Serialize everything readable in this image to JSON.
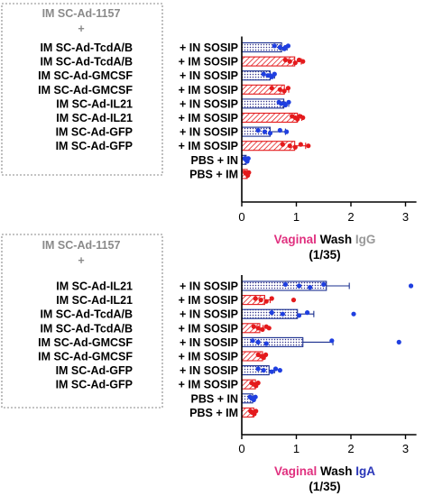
{
  "colors": {
    "in_fill": "url(#dots)",
    "in_stroke": "#1a2f8f",
    "in_dot": "#1f3fe0",
    "im_fill": "url(#hatch)",
    "im_stroke": "#e41a1c",
    "im_dot": "#e41a1c",
    "vaginal": "#e0307f",
    "wash": "#000000",
    "igg": "#999999",
    "iga": "#2a36b8"
  },
  "chart_data": [
    {
      "type": "bar",
      "orientation": "horizontal",
      "group_header": [
        "IM SC-Ad-1157",
        "+"
      ],
      "categories": [
        [
          "IM SC-Ad-TcdA/B",
          "+ IN SOSIP"
        ],
        [
          "IM SC-Ad-TcdA/B",
          "+ IM SOSIP"
        ],
        [
          "IM SC-Ad-GMCSF",
          "+ IN SOSIP"
        ],
        [
          "IM SC-Ad-GMCSF",
          "+ IM SOSIP"
        ],
        [
          "IM SC-Ad-IL21",
          "+ IN SOSIP"
        ],
        [
          "IM SC-Ad-IL21",
          "+ IM SOSIP"
        ],
        [
          "IM SC-Ad-GFP",
          "+ IN SOSIP"
        ],
        [
          "IM SC-Ad-GFP",
          "+ IM SOSIP"
        ],
        [
          "",
          "PBS + IN"
        ],
        [
          "",
          "PBS + IM"
        ]
      ],
      "route": [
        "IN",
        "IM",
        "IN",
        "IM",
        "IN",
        "IM",
        "IN",
        "IM",
        "IN",
        "IM"
      ],
      "values": [
        0.73,
        0.97,
        0.52,
        0.78,
        0.77,
        1.02,
        0.52,
        0.97,
        0.08,
        0.1
      ],
      "errors": [
        0.1,
        0.12,
        0.08,
        0.08,
        0.09,
        0.08,
        0.28,
        0.2,
        0.03,
        0.03
      ],
      "points": [
        [
          0.6,
          0.7,
          0.78,
          0.85,
          0.8
        ],
        [
          0.8,
          0.88,
          0.98,
          1.05,
          1.12
        ],
        [
          0.4,
          0.48,
          0.55,
          0.6,
          0.52
        ],
        [
          0.55,
          0.7,
          0.78,
          0.85
        ],
        [
          0.68,
          0.72,
          0.8,
          0.86,
          0.78
        ],
        [
          0.92,
          0.98,
          1.02,
          1.06,
          1.12
        ],
        [
          0.3,
          0.42,
          0.52,
          0.7,
          0.82
        ],
        [
          0.75,
          0.88,
          0.98,
          1.08,
          1.22
        ],
        [
          0.05,
          0.08,
          0.1,
          0.12,
          0.08
        ],
        [
          0.06,
          0.09,
          0.11,
          0.13,
          0.1
        ]
      ],
      "xlim": [
        0,
        3.2
      ],
      "xticks": [
        0,
        1,
        2,
        3
      ],
      "title_parts": [
        "Vaginal",
        "Wash",
        "IgG"
      ],
      "subtitle": "(1/35)"
    },
    {
      "type": "bar",
      "orientation": "horizontal",
      "group_header": [
        "IM SC-Ad-1157",
        "+"
      ],
      "categories": [
        [
          "IM SC-Ad-IL21",
          "+ IN SOSIP"
        ],
        [
          "IM SC-Ad-IL21",
          "+ IM SOSIP"
        ],
        [
          "IM SC-Ad-TcdA/B",
          "+ IN SOSIP"
        ],
        [
          "IM SC-Ad-TcdA/B",
          "+ IM SOSIP"
        ],
        [
          "IM SC-Ad-GMCSF",
          "+ IN SOSIP"
        ],
        [
          "IM SC-Ad-GMCSF",
          "+ IM SOSIP"
        ],
        [
          "IM SC-Ad-GFP",
          "+ IN SOSIP"
        ],
        [
          "IM SC-Ad-GFP",
          "+ IM SOSIP"
        ],
        [
          "",
          "PBS + IN"
        ],
        [
          "",
          "PBS + IM"
        ]
      ],
      "route": [
        "IN",
        "IM",
        "IN",
        "IM",
        "IN",
        "IM",
        "IN",
        "IM",
        "IN",
        "IM"
      ],
      "values": [
        1.55,
        0.42,
        1.02,
        0.33,
        1.12,
        0.38,
        0.5,
        0.25,
        0.2,
        0.22
      ],
      "errors": [
        0.42,
        0.1,
        0.3,
        0.06,
        0.55,
        0.05,
        0.1,
        0.04,
        0.03,
        0.03
      ],
      "points": [
        [
          0.8,
          1.05,
          1.25,
          1.5,
          3.1
        ],
        [
          0.25,
          0.35,
          0.45,
          0.55,
          0.95
        ],
        [
          0.55,
          0.75,
          1.05,
          1.2,
          2.05
        ],
        [
          0.22,
          0.3,
          0.38,
          0.45,
          0.5
        ],
        [
          0.2,
          0.3,
          0.45,
          1.65,
          2.88
        ],
        [
          0.3,
          0.36,
          0.4,
          0.44,
          0.38
        ],
        [
          0.3,
          0.4,
          0.55,
          0.62,
          0.7
        ],
        [
          0.18,
          0.22,
          0.26,
          0.3,
          0.25
        ],
        [
          0.15,
          0.18,
          0.22,
          0.25,
          0.2
        ],
        [
          0.16,
          0.19,
          0.23,
          0.26,
          0.21
        ]
      ],
      "xlim": [
        0,
        3.2
      ],
      "xticks": [
        0,
        1,
        2,
        3
      ],
      "title_parts": [
        "Vaginal",
        "Wash",
        "IgA"
      ],
      "subtitle": "(1/35)"
    }
  ]
}
